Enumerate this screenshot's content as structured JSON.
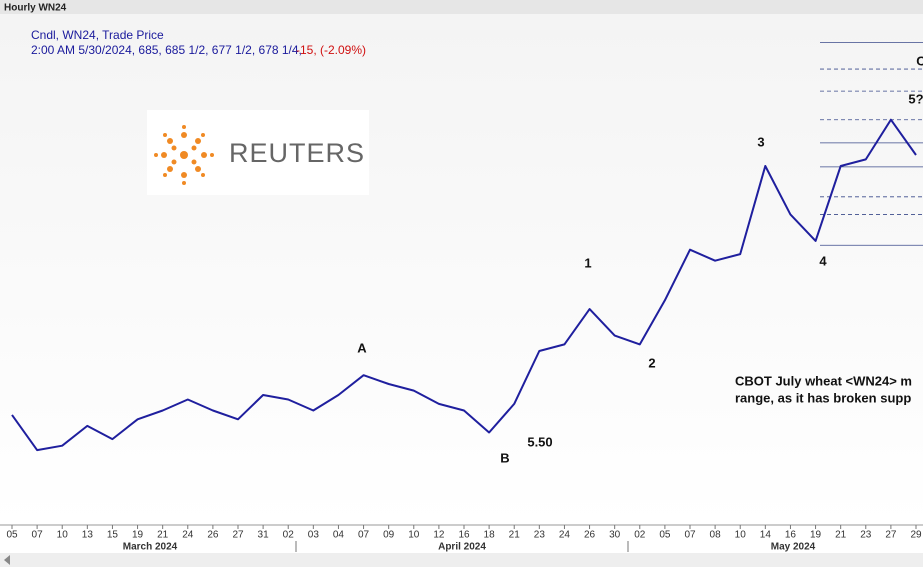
{
  "chart_data": {
    "type": "line",
    "title": "Hourly WN24",
    "legend_title": "Cndl, WN24, Trade Price",
    "legend_quote": "2:00 AM 5/30/2024, 685, 685 1/2, 677 1/2, 678 1/4,",
    "legend_change": "-15, (-2.09%)",
    "logo_text": "REUTERS",
    "categories": [
      "05",
      "07",
      "10",
      "13",
      "15",
      "19",
      "21",
      "24",
      "26",
      "27",
      "31",
      "02",
      "03",
      "04",
      "07",
      "09",
      "10",
      "12",
      "16",
      "18",
      "21",
      "23",
      "24",
      "26",
      "30",
      "02",
      "05",
      "07",
      "08",
      "10",
      "14",
      "16",
      "19",
      "21",
      "23",
      "27",
      "29"
    ],
    "months": [
      "March 2024",
      "April 2024",
      "May 2024"
    ],
    "series": [
      {
        "name": "WN24",
        "color": "#1f1f9e",
        "values": [
          560,
          544,
          546,
          555,
          549,
          558,
          562,
          567,
          562,
          558,
          569,
          567,
          562,
          569,
          578,
          574,
          571,
          565,
          562,
          552,
          565,
          589,
          592,
          608,
          596,
          592,
          612,
          635,
          630,
          633,
          673,
          651,
          639,
          673,
          676,
          694,
          678
        ]
      }
    ],
    "ylim": [
      510,
      742
    ],
    "levels": [
      729,
      717,
      707,
      694,
      683.5,
      672.6,
      659,
      651,
      637
    ],
    "level_styles": [
      "solid",
      "dashed",
      "dashed",
      "dashed",
      "solid",
      "solid",
      "dashed",
      "dashed",
      "solid"
    ],
    "annotations": [
      "A",
      "B",
      "5.50",
      "1",
      "2",
      "3",
      "4",
      "5?",
      "C"
    ],
    "note": [
      "CBOT July wheat <WN24> m",
      "range, as it has broken supp"
    ]
  }
}
